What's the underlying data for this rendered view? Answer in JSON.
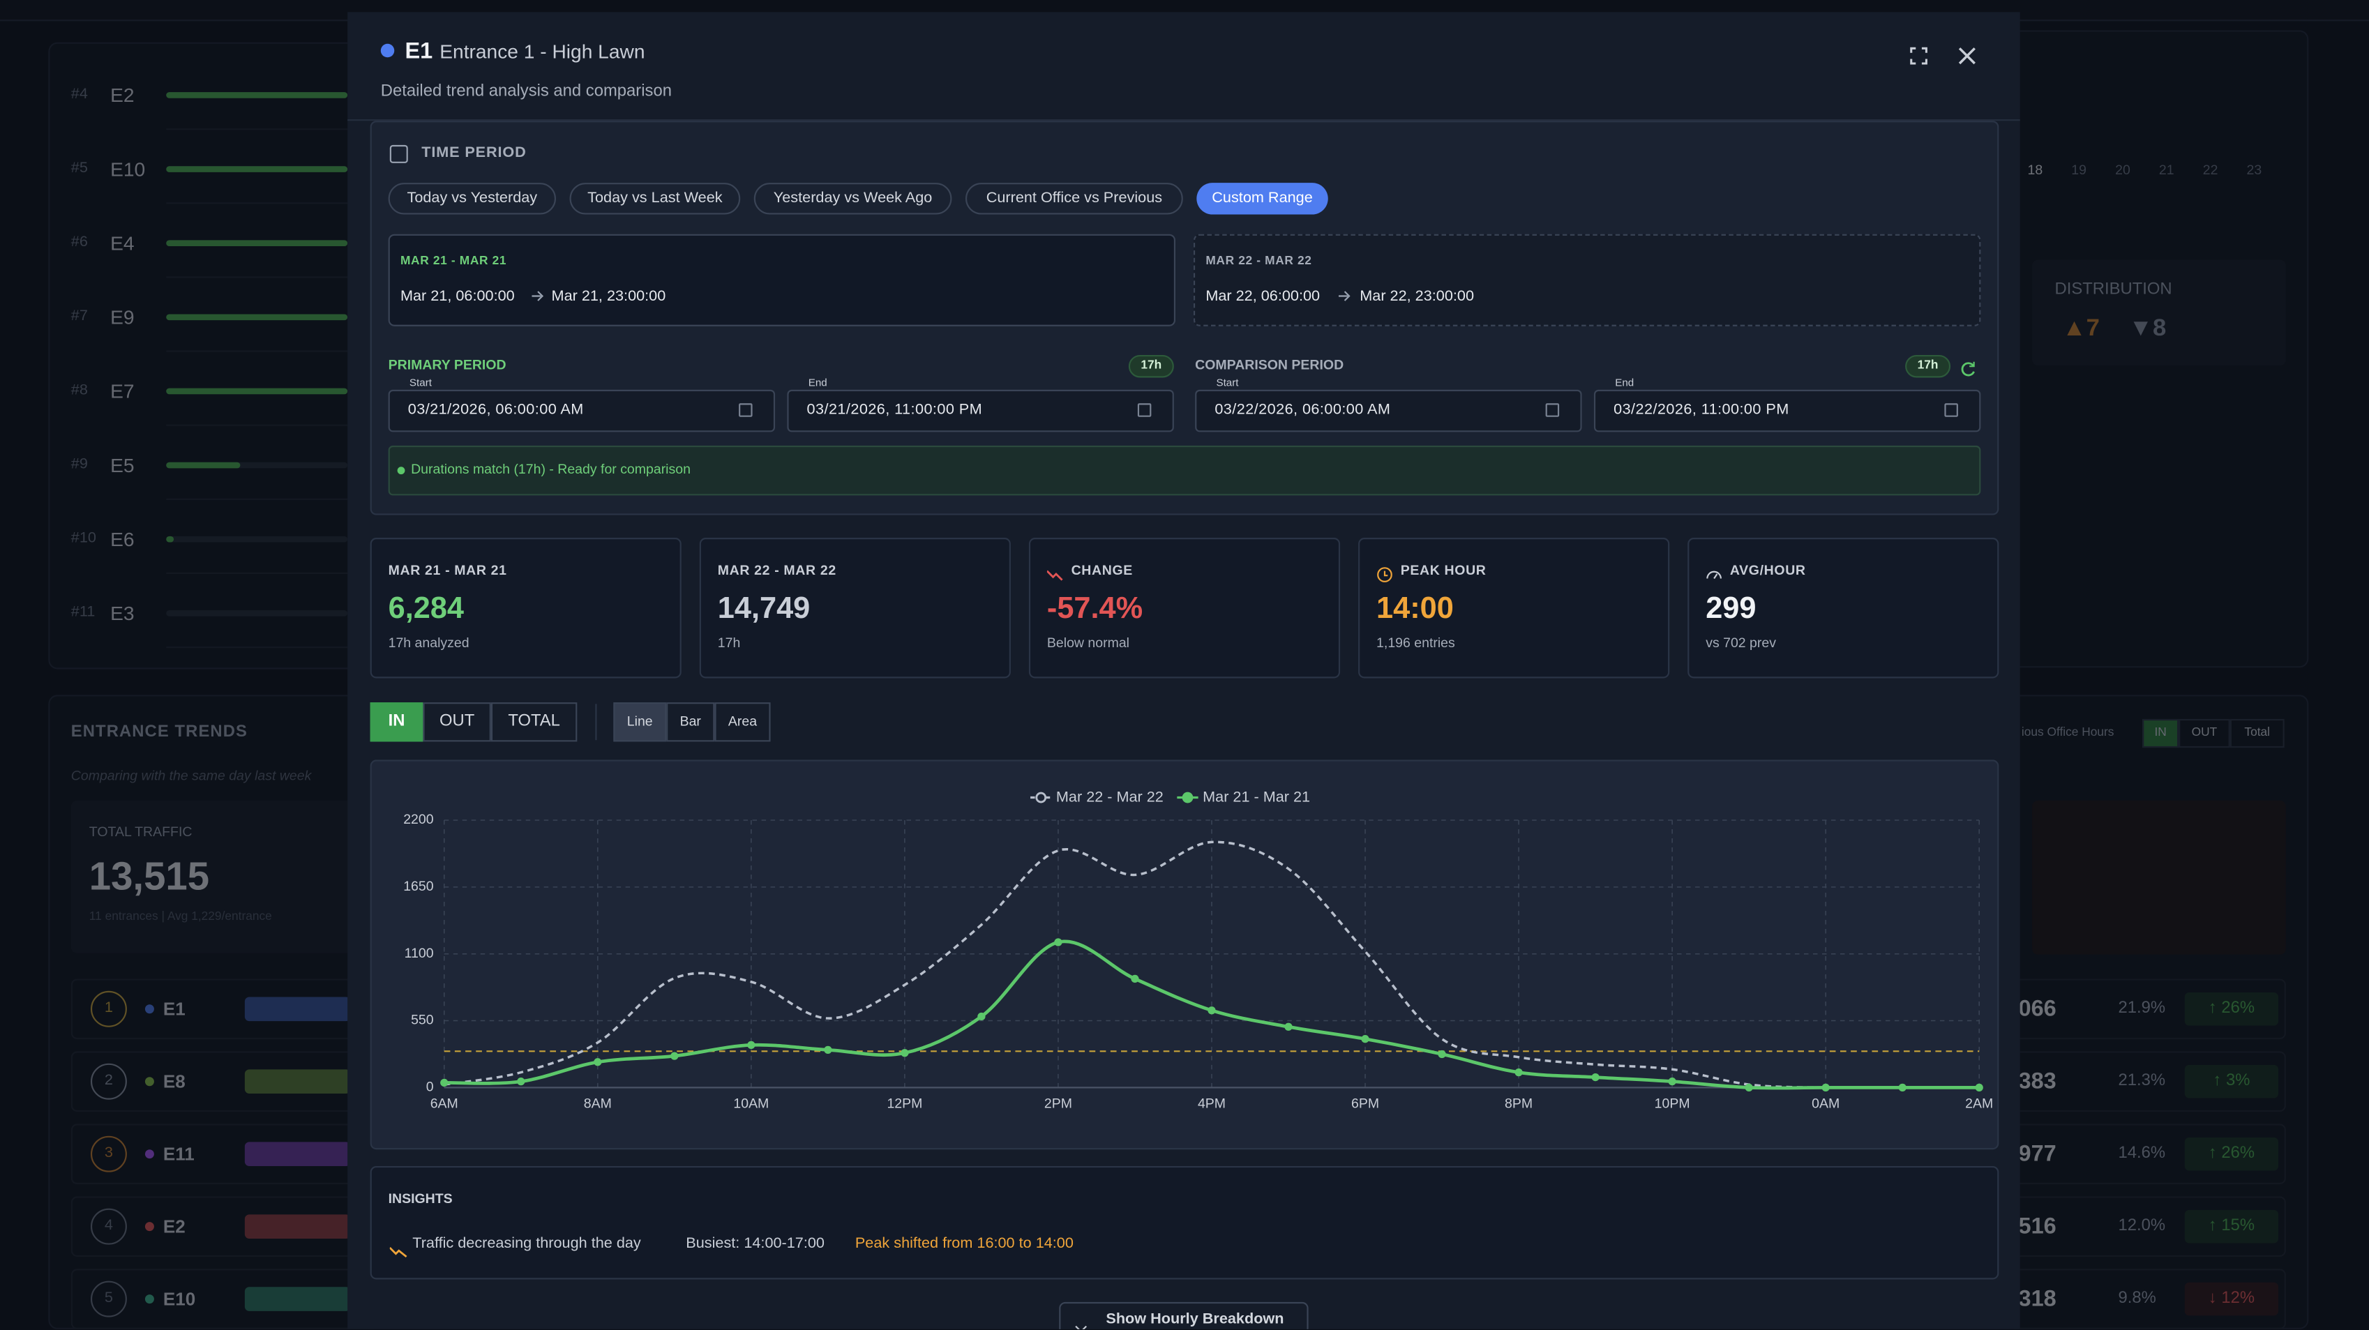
{
  "background": {
    "ranking": [
      {
        "rank": "#4",
        "name": "E2"
      },
      {
        "rank": "#5",
        "name": "E10"
      },
      {
        "rank": "#6",
        "name": "E4"
      },
      {
        "rank": "#7",
        "name": "E9"
      },
      {
        "rank": "#8",
        "name": "E7"
      },
      {
        "rank": "#9",
        "name": "E5"
      },
      {
        "rank": "#10",
        "name": "E6"
      },
      {
        "rank": "#11",
        "name": "E3"
      }
    ],
    "trends_title": "ENTRANCE TRENDS",
    "trends_subtitle": "Comparing with the same day last week",
    "total_label": "TOTAL TRAFFIC",
    "total": "13,515",
    "total_sub": "11 entrances | Avg 1,229/entrance",
    "list": [
      {
        "rank": "1",
        "name": "E1"
      },
      {
        "rank": "2",
        "name": "E8"
      },
      {
        "rank": "3",
        "name": "E11"
      },
      {
        "rank": "4",
        "name": "E2"
      },
      {
        "rank": "5",
        "name": "E10"
      }
    ],
    "hours": [
      "18",
      "19",
      "20",
      "21",
      "22",
      "23"
    ],
    "distribution_label": "DISTRIBUTION",
    "dist_up": "▲7",
    "dist_down": "▼8",
    "office_hours": "ious Office Hours",
    "toggle": [
      "IN",
      "OUT",
      "Total"
    ],
    "rows": [
      {
        "total": "066",
        "share": "21.9%",
        "change": "↑ 26%"
      },
      {
        "total": "383",
        "share": "21.3%",
        "change": "↑ 3%"
      },
      {
        "total": "977",
        "share": "14.6%",
        "change": "↑ 26%"
      },
      {
        "total": "516",
        "share": "12.0%",
        "change": "↑ 15%"
      },
      {
        "total": "318",
        "share": "9.8%",
        "change": "↓ 12%"
      }
    ]
  },
  "modal": {
    "code": "E1",
    "title": "Entrance 1 - High Lawn",
    "subtitle": "Detailed trend analysis and comparison",
    "time_period": "TIME PERIOD",
    "presets": [
      "Today vs Yesterday",
      "Today vs Last Week",
      "Yesterday vs Week Ago",
      "Current Office vs Previous",
      "Custom Range"
    ],
    "primary_range": {
      "label": "MAR 21 - MAR 21",
      "start": "Mar 21, 06:00:00",
      "end": "Mar 21, 23:00:00"
    },
    "comparison_range": {
      "label": "MAR 22 - MAR 22",
      "start": "Mar 22, 06:00:00",
      "end": "Mar 22, 23:00:00"
    },
    "primary_period": {
      "label": "PRIMARY PERIOD",
      "badge": "17h",
      "start_label": "Start",
      "start": "03/21/2026, 06:00:00 AM",
      "end_label": "End",
      "end": "03/21/2026, 11:00:00 PM"
    },
    "comparison_period": {
      "label": "COMPARISON PERIOD",
      "badge": "17h",
      "start_label": "Start",
      "start": "03/22/2026, 06:00:00 AM",
      "end_label": "End",
      "end": "03/22/2026, 11:00:00 PM"
    },
    "status": "Durations match (17h) - Ready for comparison",
    "cards": [
      {
        "label": "MAR 21 - MAR 21",
        "value": "6,284",
        "sub": "17h analyzed"
      },
      {
        "label": "MAR 22 - MAR 22",
        "value": "14,749",
        "sub": "17h"
      },
      {
        "label": "CHANGE",
        "value": "-57.4%",
        "sub": "Below normal"
      },
      {
        "label": "PEAK HOUR",
        "value": "14:00",
        "sub": "1,196 entries"
      },
      {
        "label": "AVG/HOUR",
        "value": "299",
        "sub": "vs 702 prev"
      }
    ],
    "metric_toggle": [
      "IN",
      "OUT",
      "TOTAL"
    ],
    "chart_toggle": [
      "Line",
      "Bar",
      "Area"
    ],
    "insights_title": "INSIGHTS",
    "insights": [
      "Traffic decreasing through the day",
      "Busiest: 14:00-17:00",
      "Peak shifted from 16:00 to 14:00"
    ],
    "button": "Show Hourly Breakdown"
  },
  "chart_data": {
    "type": "line",
    "categories": [
      "6AM",
      null,
      "8AM",
      null,
      "10AM",
      null,
      "12PM",
      null,
      "2PM",
      null,
      "4PM",
      null,
      "6PM",
      null,
      "8PM",
      null,
      "10PM",
      null,
      "0AM",
      null,
      "2AM"
    ],
    "series": [
      {
        "name": "Mar 22 - Mar 22",
        "color": "#b8bfcc",
        "dashed": true,
        "values": [
          25,
          125,
          370,
          900,
          870,
          570,
          845,
          1340,
          1950,
          1750,
          2020,
          1800,
          1120,
          400,
          250,
          190,
          150,
          25,
          0,
          0,
          0
        ]
      },
      {
        "name": "Mar 21 - Mar 21",
        "color": "#5cc76a",
        "dashed": false,
        "values": [
          40,
          50,
          210,
          260,
          350,
          310,
          285,
          585,
          1196,
          895,
          635,
          500,
          400,
          275,
          125,
          85,
          50,
          0,
          0,
          0,
          0
        ]
      }
    ],
    "average_line": 299,
    "average_color": "#c9a43a",
    "ylim": [
      0,
      2200
    ],
    "yticks": [
      0,
      550,
      1100,
      1650,
      2200
    ],
    "grid": true,
    "legend": "top"
  }
}
